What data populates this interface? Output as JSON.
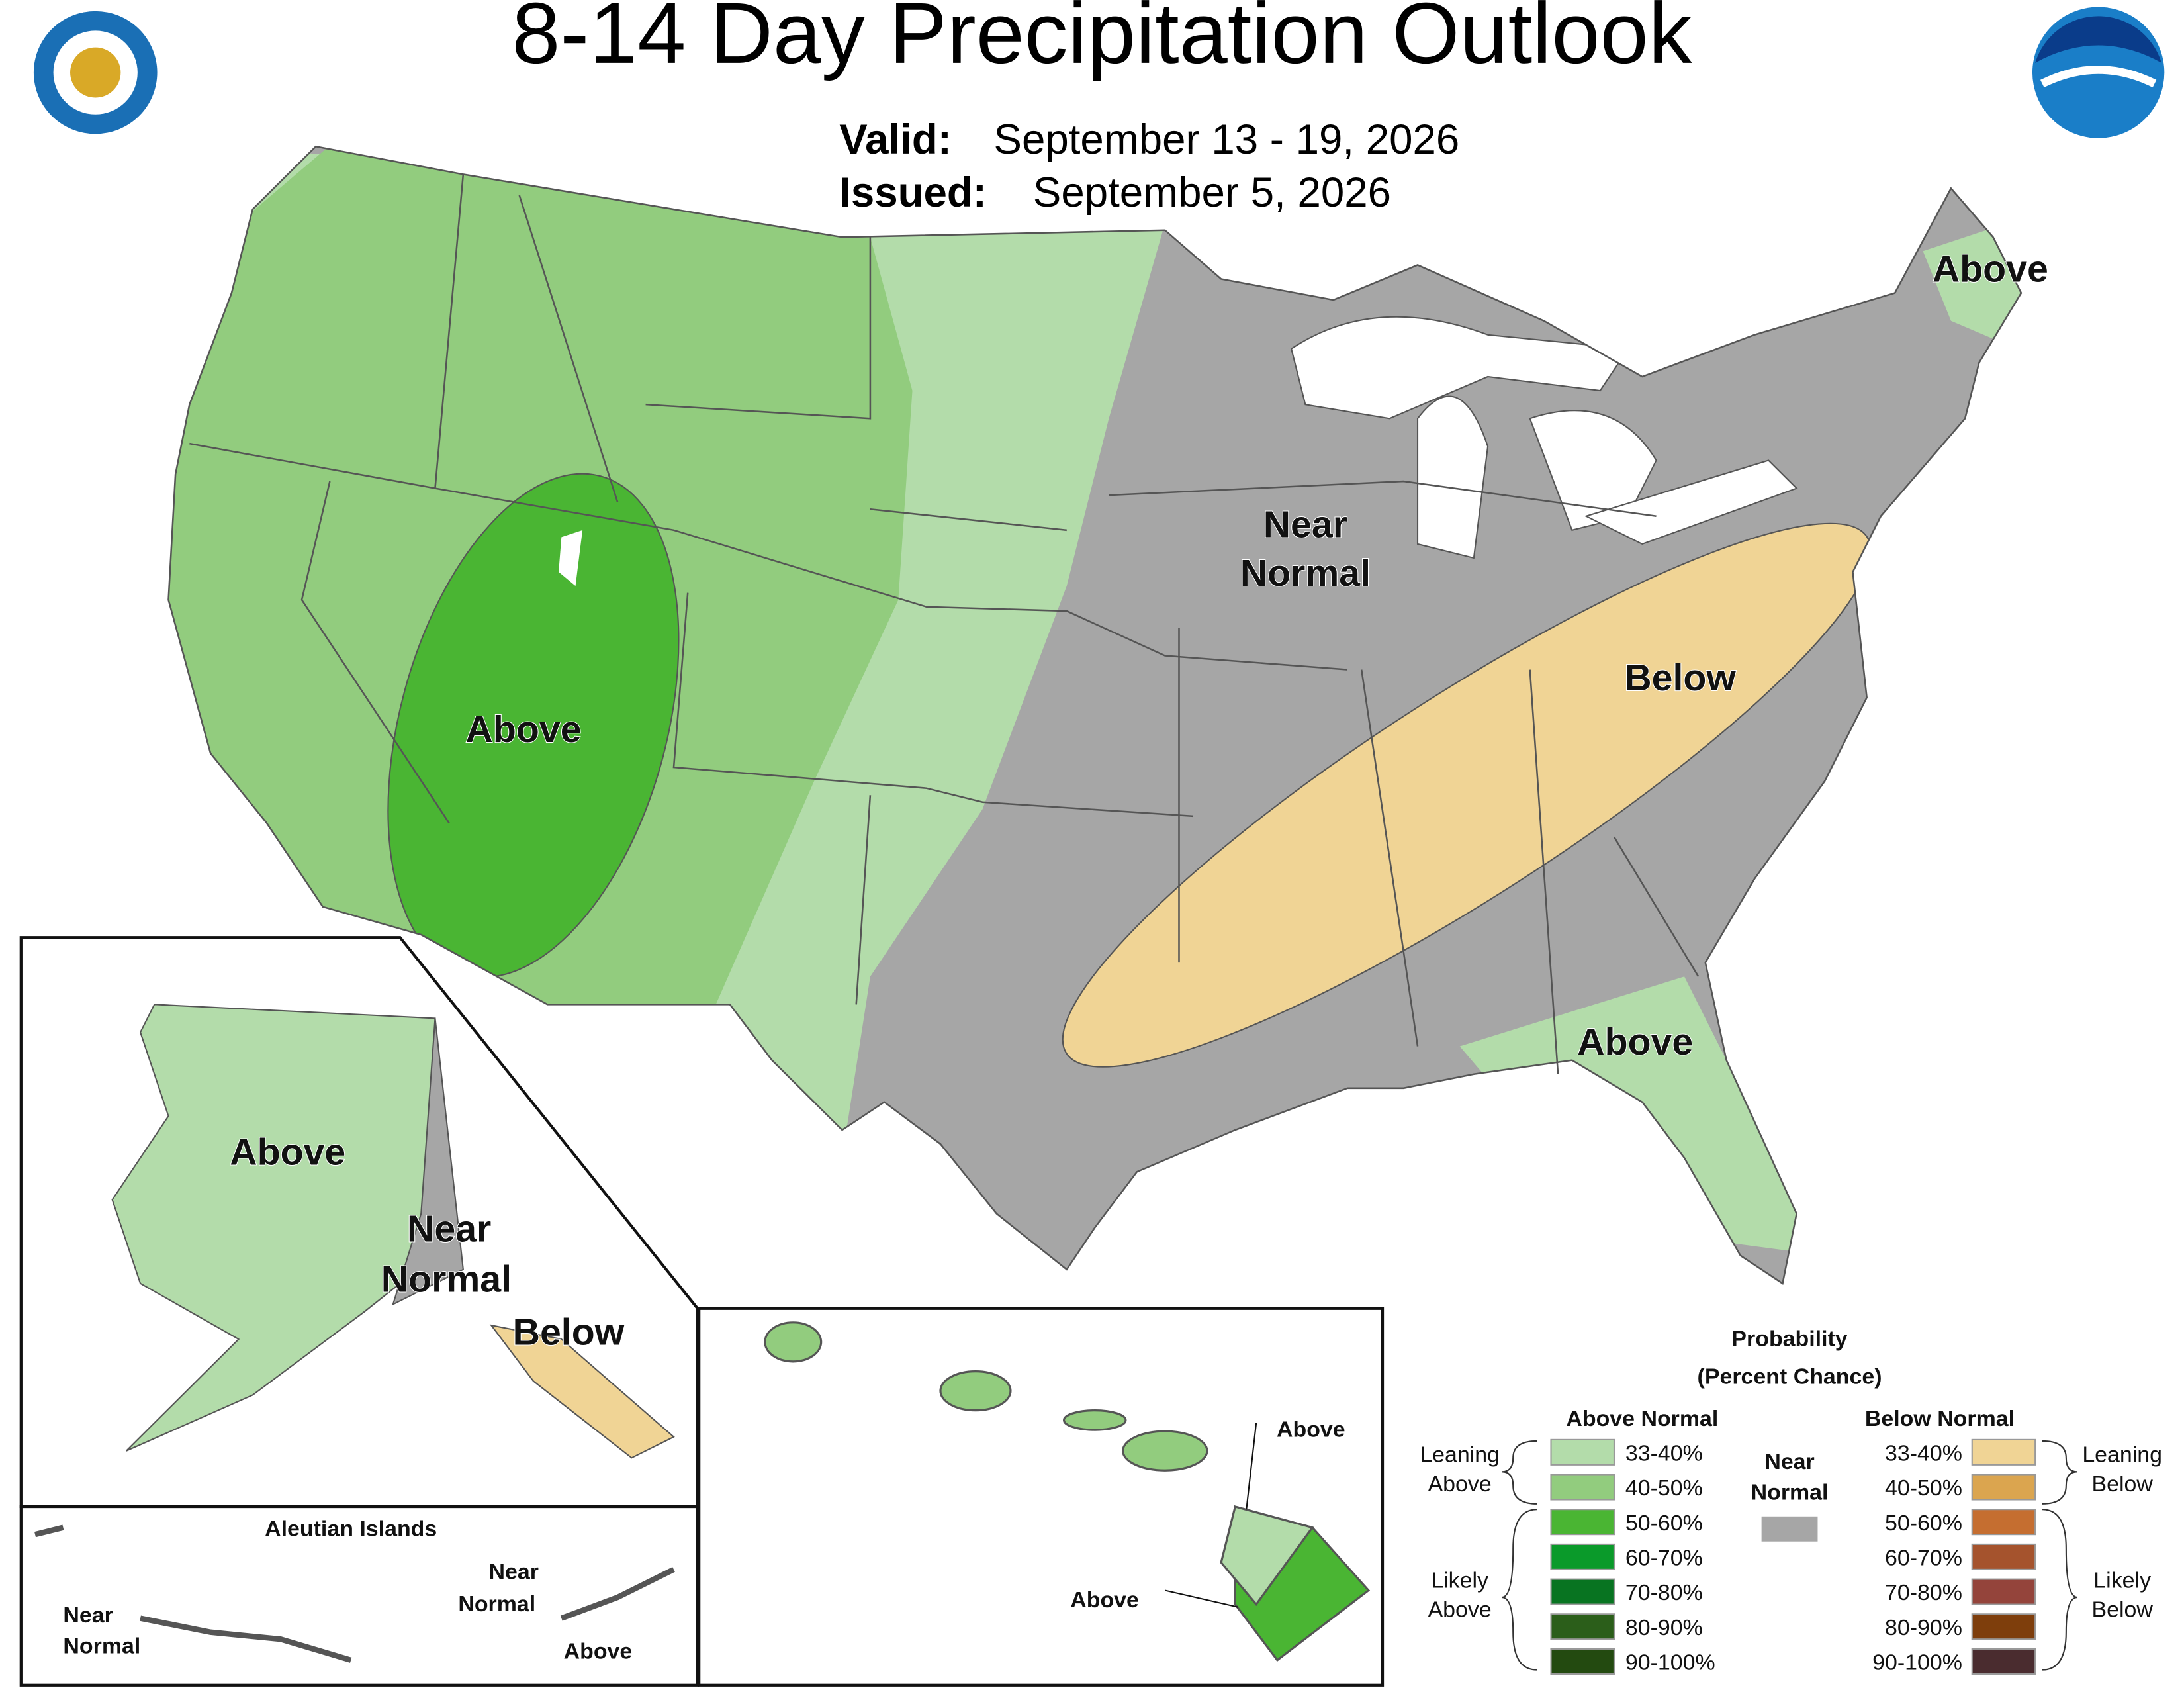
{
  "header": {
    "title": "8-14 Day Precipitation Outlook",
    "valid_label": "Valid:",
    "valid": "September 13 - 19, 2026",
    "issued_label": "Issued:",
    "issued": "September 5, 2026"
  },
  "conus_labels": {
    "above_maine": "Above",
    "near_normal": [
      "Near",
      "Normal"
    ],
    "below": "Below",
    "above_west": "Above",
    "above_florida": "Above"
  },
  "alaska_labels": {
    "above": "Above",
    "near_normal": [
      "Near",
      "Normal"
    ],
    "below": "Below"
  },
  "aleutian": {
    "title": "Aleutian Islands",
    "near_normal_west": [
      "Near",
      "Normal"
    ],
    "near_normal_east": [
      "Near",
      "Normal"
    ],
    "above": "Above"
  },
  "hawaii_labels": {
    "above_top": "Above",
    "above_bottom": "Above"
  },
  "legend": {
    "title": [
      "Probability",
      "(Percent Chance)"
    ],
    "above_heading": "Above Normal",
    "below_heading": "Below Normal",
    "near_heading": [
      "Near",
      "Normal"
    ],
    "near_color": "#a6a6a6",
    "above": [
      {
        "label": "33-40%",
        "color": "#b3dcaa"
      },
      {
        "label": "40-50%",
        "color": "#92cc7e"
      },
      {
        "label": "50-60%",
        "color": "#4ab533"
      },
      {
        "label": "60-70%",
        "color": "#0a9a2a"
      },
      {
        "label": "70-80%",
        "color": "#087421"
      },
      {
        "label": "80-90%",
        "color": "#2b5e1a"
      },
      {
        "label": "90-100%",
        "color": "#234a10"
      }
    ],
    "below": [
      {
        "label": "33-40%",
        "color": "#f0d495"
      },
      {
        "label": "40-50%",
        "color": "#dba54f"
      },
      {
        "label": "50-60%",
        "color": "#c56e30"
      },
      {
        "label": "60-70%",
        "color": "#a5532d"
      },
      {
        "label": "70-80%",
        "color": "#94443b"
      },
      {
        "label": "80-90%",
        "color": "#7e3e0c"
      },
      {
        "label": "90-100%",
        "color": "#4a2c2f"
      }
    ],
    "leaning_above": [
      "Leaning",
      "Above"
    ],
    "likely_above": [
      "Likely",
      "Above"
    ],
    "leaning_below": [
      "Leaning",
      "Below"
    ],
    "likely_below": [
      "Likely",
      "Below"
    ]
  }
}
